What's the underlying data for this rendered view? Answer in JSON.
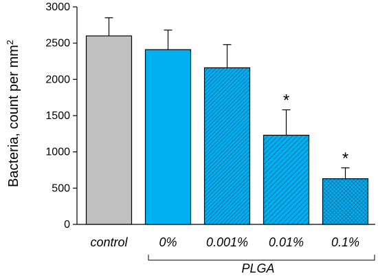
{
  "chart_data": {
    "type": "bar",
    "title": "",
    "xlabel": "",
    "ylabel": "Bacteria, count per mm",
    "ylabel_superscript": "2",
    "ylim": [
      0,
      3000
    ],
    "yticks": [
      0,
      500,
      1000,
      1500,
      2000,
      2500,
      3000
    ],
    "categories": [
      "control",
      "0%",
      "0.001%",
      "0.01%",
      "0.1%"
    ],
    "values": [
      2600,
      2410,
      2160,
      1230,
      630
    ],
    "errors": [
      250,
      270,
      320,
      350,
      150
    ],
    "significance": [
      "",
      "",
      "",
      "*",
      "*"
    ],
    "group": {
      "label": "PLGA",
      "categories": [
        "0%",
        "0.001%",
        "0.01%",
        "0.1%"
      ]
    },
    "colors": {
      "control": "#c0c0c0",
      "treatment": "#00b0f0",
      "hatch": "#1f5f8f",
      "stroke": "#000000"
    },
    "patterns": [
      "solid",
      "solid",
      "diagonal-dense",
      "diagonal",
      "crosshatch"
    ],
    "grid": false
  }
}
